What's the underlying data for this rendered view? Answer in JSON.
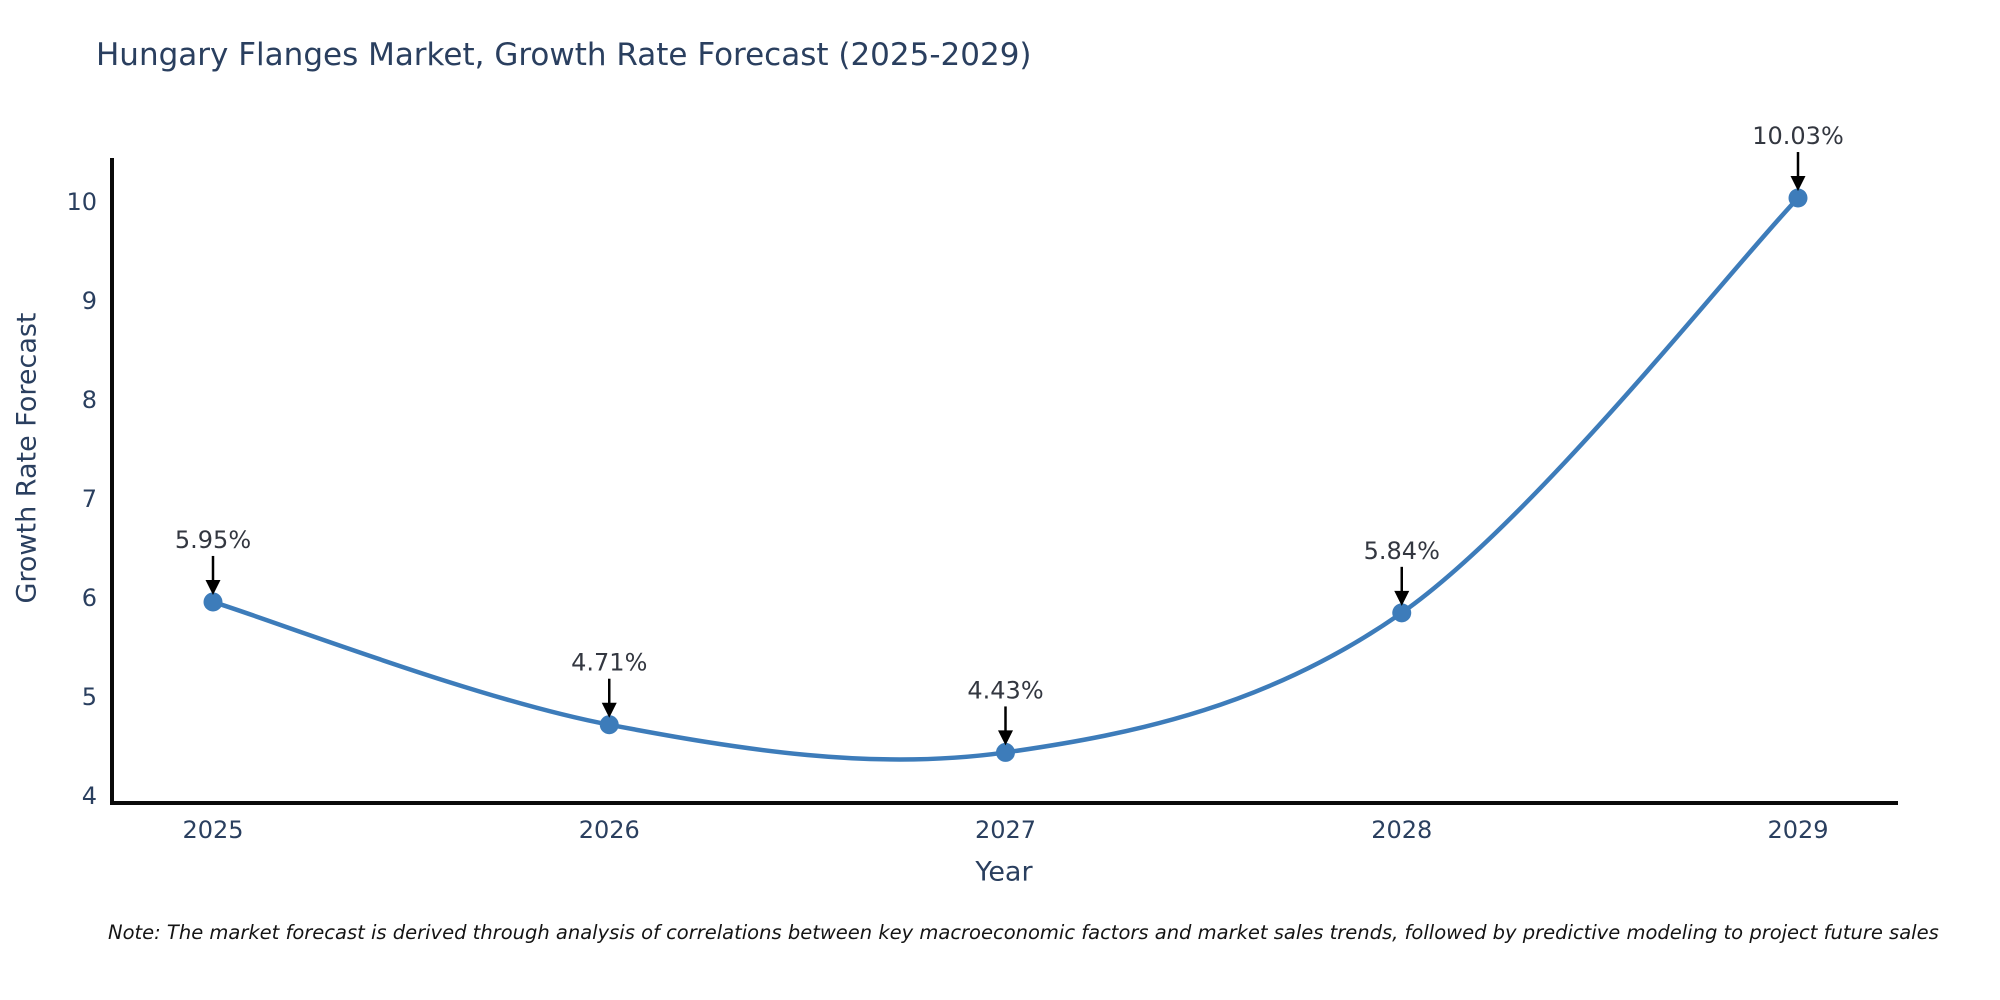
{
  "note": "Note: The market forecast is derived through analysis of correlations between key macroeconomic factors and market sales trends, followed by predictive modeling to project future sales",
  "chart_data": {
    "type": "line",
    "title": "Hungary Flanges Market, Growth Rate Forecast (2025-2029)",
    "xlabel": "Year",
    "ylabel": "Growth Rate Forecast",
    "categories": [
      "2025",
      "2026",
      "2027",
      "2028",
      "2029"
    ],
    "series": [
      {
        "name": "Growth Rate Forecast",
        "values": [
          5.95,
          4.71,
          4.43,
          5.84,
          10.03
        ],
        "point_labels": [
          "5.95%",
          "4.71%",
          "4.43%",
          "5.84%",
          "10.03%"
        ]
      }
    ],
    "yticks": [
      4,
      5,
      6,
      7,
      8,
      9,
      10
    ],
    "ylim": [
      3.92,
      10.55
    ],
    "line_shape": "spline",
    "grid": "off",
    "legend": "none",
    "colors": {
      "line": "#3d7cba",
      "marker": "#3d7cba",
      "axis": "#0a0a0a",
      "annotation_arrow": "#000000",
      "annotation_text": "#333740",
      "tick_text": "#2a3f5f",
      "title_text": "#2a3f5f"
    }
  }
}
